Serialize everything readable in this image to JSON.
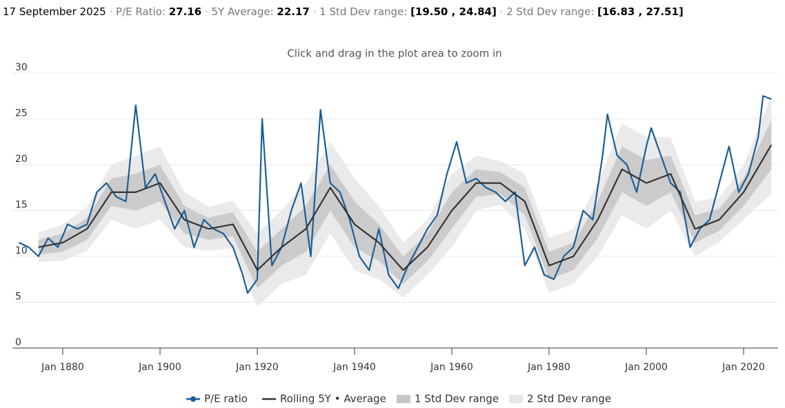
{
  "header": {
    "date": "17 September 2025",
    "items": [
      {
        "label": "P/E Ratio:",
        "value": "27.16"
      },
      {
        "label": "5Y Average:",
        "value": "22.17"
      },
      {
        "label": "1 Std Dev range:",
        "value": "[19.50 , 24.84]"
      },
      {
        "label": "2 Std Dev range:",
        "value": "[16.83 , 27.51]"
      }
    ]
  },
  "chart_data": {
    "type": "line",
    "subtitle": "Click and drag in the plot area to zoom in",
    "x": [
      1871,
      1873,
      1875,
      1877,
      1879,
      1881,
      1883,
      1885,
      1887,
      1889,
      1891,
      1893,
      1895,
      1897,
      1899,
      1901,
      1903,
      1905,
      1907,
      1909,
      1911,
      1913,
      1915,
      1917,
      1918,
      1920,
      1921,
      1923,
      1925,
      1927,
      1929,
      1931,
      1933,
      1935,
      1937,
      1939,
      1941,
      1943,
      1945,
      1947,
      1949,
      1951,
      1953,
      1955,
      1957,
      1959,
      1961,
      1963,
      1965,
      1967,
      1969,
      1971,
      1973,
      1975,
      1977,
      1979,
      1981,
      1983,
      1985,
      1987,
      1989,
      1991,
      1992,
      1994,
      1996,
      1998,
      2000,
      2001,
      2003,
      2005,
      2007,
      2009,
      2011,
      2013,
      2015,
      2017,
      2019,
      2021,
      2023,
      2024,
      2025.7
    ],
    "series": [
      {
        "name": "P/E ratio",
        "color": "#1a5e96",
        "values": [
          11.5,
          11,
          10,
          12,
          11,
          13.5,
          13,
          13.5,
          17,
          18,
          16.5,
          16,
          26.5,
          17.5,
          19,
          16,
          13,
          15,
          11,
          14,
          13,
          12.5,
          11,
          8,
          6,
          7.5,
          25,
          9,
          11,
          15,
          18,
          10,
          26,
          18,
          17,
          14,
          10,
          8.5,
          13,
          8,
          6.5,
          9,
          11,
          13,
          14.5,
          19,
          22.5,
          18,
          18.5,
          17.5,
          17,
          16,
          17,
          9,
          11,
          8,
          7.5,
          10,
          11,
          15,
          14,
          21,
          25.5,
          21,
          20,
          17,
          22,
          24,
          21,
          18,
          17,
          11,
          13,
          14,
          18,
          22,
          17,
          19,
          23,
          27.5,
          27.16
        ]
      }
    ],
    "band_x": [
      1875,
      1880,
      1885,
      1890,
      1895,
      1900,
      1905,
      1910,
      1915,
      1920,
      1925,
      1930,
      1935,
      1940,
      1945,
      1950,
      1955,
      1960,
      1965,
      1970,
      1975,
      1980,
      1985,
      1990,
      1995,
      2000,
      2005,
      2010,
      2015,
      2020,
      2025.7
    ],
    "average": {
      "name": "Rolling 5Y • Average",
      "color": "#333333",
      "values": [
        11,
        11.5,
        13,
        17,
        17,
        18,
        14,
        13,
        13.5,
        8.5,
        11,
        13,
        17.5,
        13.5,
        11.5,
        8.5,
        11,
        15,
        18,
        18,
        16,
        9,
        10,
        14,
        19.5,
        18,
        19,
        13,
        14,
        17,
        22.17
      ]
    },
    "bands": [
      {
        "name": "1 Std Dev range",
        "color": "#c6c6c6",
        "lower": [
          10.2,
          10.5,
          11.8,
          15.5,
          15,
          16,
          12.5,
          11.8,
          12.2,
          6.5,
          9,
          10.5,
          15,
          11,
          9.5,
          7,
          9.5,
          13,
          16.5,
          16.8,
          14.5,
          7.5,
          8.5,
          12,
          17,
          15.5,
          17,
          11.5,
          12.8,
          15.5,
          19.5
        ],
        "upper": [
          11.8,
          12.5,
          14.2,
          18.5,
          19,
          20,
          15.5,
          14.2,
          14.8,
          10.5,
          13,
          15.5,
          20,
          16,
          13.5,
          10,
          12.5,
          17,
          19.5,
          19.2,
          17.5,
          10.5,
          11.5,
          16,
          22,
          20.5,
          21,
          14.5,
          15.2,
          18.5,
          24.84
        ]
      },
      {
        "name": "2 Std Dev range",
        "color": "#e6e6e6",
        "lower": [
          9.4,
          9.5,
          10.6,
          14,
          13,
          14,
          11,
          10.6,
          10.9,
          4.5,
          7,
          8,
          12.5,
          8.5,
          7.5,
          5.5,
          8,
          11,
          15,
          15.6,
          13,
          6,
          7,
          10,
          14.5,
          13,
          15,
          10,
          11.6,
          14,
          16.83
        ],
        "upper": [
          12.6,
          13.5,
          15.4,
          20,
          21,
          22,
          17,
          15.4,
          16.1,
          12.5,
          15,
          18,
          22.5,
          18.5,
          15.5,
          11.5,
          14,
          19,
          21,
          20.4,
          19,
          12,
          13,
          18,
          24.5,
          23,
          23,
          16,
          16.4,
          20,
          27.51
        ]
      }
    ],
    "xlim": [
      1871,
      2026.5
    ],
    "xticks": [
      {
        "value": 1880,
        "label": "Jan 1880"
      },
      {
        "value": 1900,
        "label": "Jan 1900"
      },
      {
        "value": 1920,
        "label": "Jan 1920"
      },
      {
        "value": 1940,
        "label": "Jan 1940"
      },
      {
        "value": 1960,
        "label": "Jan 1960"
      },
      {
        "value": 1980,
        "label": "Jan 1980"
      },
      {
        "value": 2000,
        "label": "Jan 2000"
      },
      {
        "value": 2020,
        "label": "Jan 2020"
      }
    ],
    "ylim": [
      0,
      30
    ],
    "yticks": [
      0,
      5,
      10,
      15,
      20,
      25,
      30
    ],
    "grid": true
  }
}
